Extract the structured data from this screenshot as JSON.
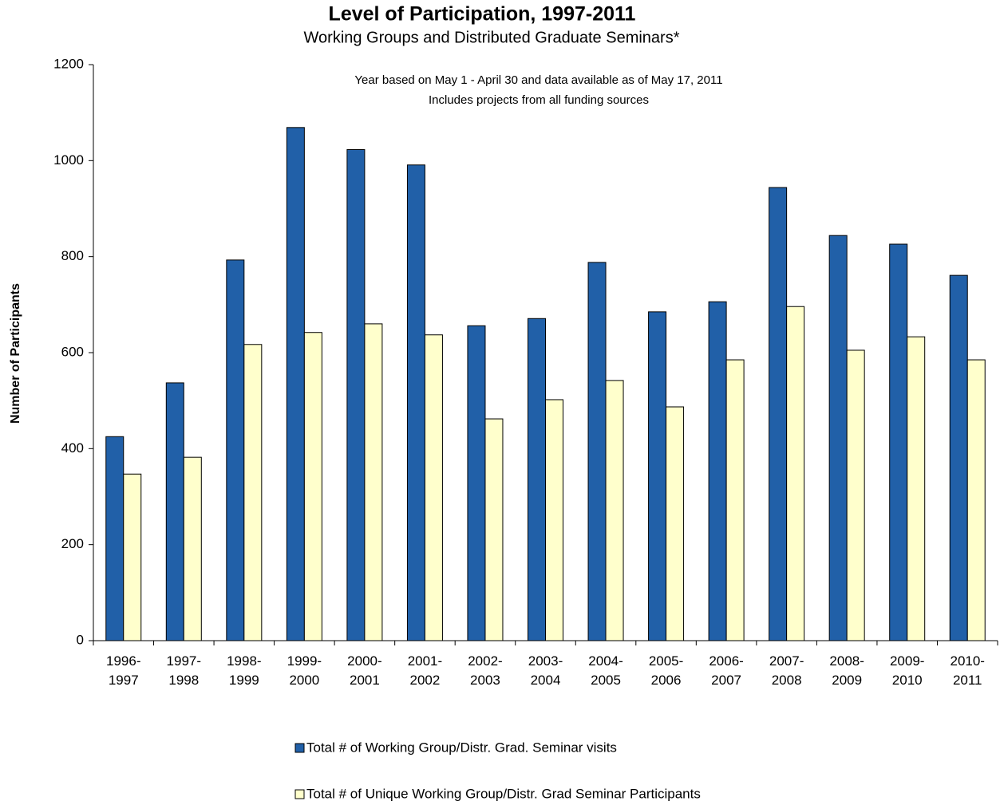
{
  "chart_data": {
    "type": "bar",
    "title": "Level of Participation, 1997-2011",
    "subtitle": "Working Groups and Distributed Graduate Seminars*",
    "annotations": [
      "Year based on May 1 - April 30 and data available as of May 17, 2011",
      "Includes projects from all funding sources"
    ],
    "y_label": "Number of Participants",
    "categories": [
      "1996- 1997",
      "1997- 1998",
      "1998- 1999",
      "1999- 2000",
      "2000- 2001",
      "2001- 2002",
      "2002- 2003",
      "2003- 2004",
      "2004- 2005",
      "2005- 2006",
      "2006- 2007",
      "2007- 2008",
      "2008- 2009",
      "2009- 2010",
      "2010- 2011"
    ],
    "series": [
      {
        "name": "Total # of Working Group/Distr. Grad. Seminar visits",
        "color": "#2160a8",
        "values": [
          425,
          537,
          793,
          1069,
          1023,
          991,
          656,
          671,
          788,
          685,
          706,
          944,
          844,
          826,
          761
        ]
      },
      {
        "name": "Total # of Unique Working Group/Distr. Grad Seminar Participants",
        "color": "#ffffcc",
        "values": [
          347,
          382,
          617,
          642,
          660,
          637,
          462,
          502,
          542,
          487,
          585,
          696,
          605,
          633,
          585
        ]
      }
    ],
    "ylim": [
      0,
      1200
    ],
    "yticks": [
      0,
      200,
      400,
      600,
      800,
      1000,
      1200
    ],
    "grid": false
  }
}
